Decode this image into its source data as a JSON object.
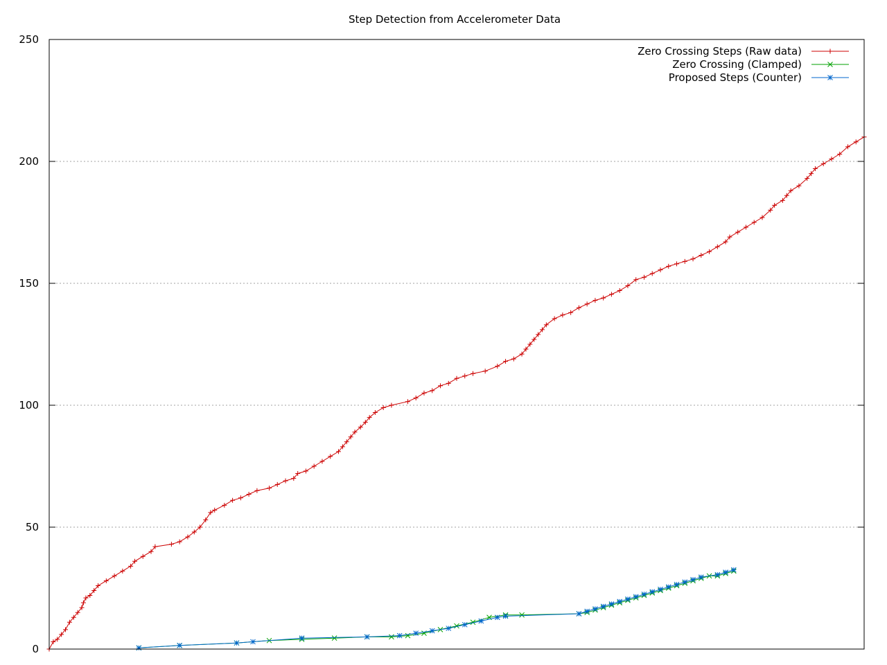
{
  "chart_data": {
    "type": "line",
    "title": "Step Detection from Accelerometer Data",
    "xlabel": "",
    "ylabel": "",
    "xlim": [
      0,
      100
    ],
    "ylim": [
      0,
      250
    ],
    "yticks": [
      0,
      50,
      100,
      150,
      200,
      250
    ],
    "yticklabels": [
      "0",
      "50",
      "100",
      "150",
      "200",
      "250"
    ],
    "grid": "horizontal-dotted",
    "legend": "top-right",
    "series": [
      {
        "name": "Zero Crossing Steps (Raw data)",
        "color": "#cc0000",
        "marker": "plus",
        "points": [
          [
            0,
            0
          ],
          [
            0.5,
            3
          ],
          [
            1,
            4
          ],
          [
            1.5,
            6
          ],
          [
            2,
            8
          ],
          [
            2.5,
            11
          ],
          [
            3,
            13
          ],
          [
            3.5,
            15
          ],
          [
            4,
            17
          ],
          [
            4.2,
            19
          ],
          [
            4.5,
            21
          ],
          [
            5,
            22
          ],
          [
            5.5,
            24
          ],
          [
            6,
            26
          ],
          [
            7,
            28
          ],
          [
            8,
            30
          ],
          [
            9,
            32
          ],
          [
            10,
            34
          ],
          [
            10.5,
            36
          ],
          [
            11.5,
            38
          ],
          [
            12.5,
            40
          ],
          [
            13,
            42
          ],
          [
            15,
            43
          ],
          [
            16,
            44
          ],
          [
            17,
            46
          ],
          [
            17.8,
            48
          ],
          [
            18.5,
            50
          ],
          [
            19.2,
            53
          ],
          [
            19.8,
            56
          ],
          [
            20.3,
            57
          ],
          [
            21.5,
            59
          ],
          [
            22.5,
            61
          ],
          [
            23.5,
            62
          ],
          [
            24.5,
            63.5
          ],
          [
            25.5,
            65
          ],
          [
            27,
            66
          ],
          [
            28,
            67.5
          ],
          [
            29,
            69
          ],
          [
            30,
            70
          ],
          [
            30.5,
            72
          ],
          [
            31.5,
            73
          ],
          [
            32.5,
            75
          ],
          [
            33.5,
            77
          ],
          [
            34.5,
            79
          ],
          [
            35.5,
            81
          ],
          [
            36,
            83
          ],
          [
            36.5,
            85
          ],
          [
            37,
            87
          ],
          [
            37.5,
            89
          ],
          [
            38.2,
            91
          ],
          [
            38.8,
            93
          ],
          [
            39.3,
            95
          ],
          [
            40,
            97
          ],
          [
            41,
            99
          ],
          [
            42,
            100
          ],
          [
            44,
            101.5
          ],
          [
            45,
            103
          ],
          [
            46,
            105
          ],
          [
            47,
            106
          ],
          [
            48,
            108
          ],
          [
            49,
            109
          ],
          [
            50,
            111
          ],
          [
            51,
            112
          ],
          [
            52,
            113
          ],
          [
            53.5,
            114
          ],
          [
            55,
            116
          ],
          [
            56,
            118
          ],
          [
            57,
            119
          ],
          [
            58,
            121
          ],
          [
            58.5,
            123
          ],
          [
            59,
            125
          ],
          [
            59.5,
            127
          ],
          [
            60,
            129
          ],
          [
            60.5,
            131
          ],
          [
            61,
            133
          ],
          [
            62,
            135.5
          ],
          [
            63,
            137
          ],
          [
            64,
            138
          ],
          [
            65,
            140
          ],
          [
            66,
            141.5
          ],
          [
            67,
            143
          ],
          [
            68,
            144
          ],
          [
            69,
            145.5
          ],
          [
            70,
            147
          ],
          [
            71,
            149
          ],
          [
            72,
            151.5
          ],
          [
            73,
            152.5
          ],
          [
            74,
            154
          ],
          [
            75,
            155.5
          ],
          [
            76,
            157
          ],
          [
            77,
            158
          ],
          [
            78,
            159
          ],
          [
            79,
            160
          ],
          [
            80,
            161.5
          ],
          [
            81,
            163
          ],
          [
            82,
            165
          ],
          [
            83,
            167
          ],
          [
            83.5,
            169
          ],
          [
            84.5,
            171
          ],
          [
            85.5,
            173
          ],
          [
            86.5,
            175
          ],
          [
            87.5,
            177
          ],
          [
            88.5,
            180
          ],
          [
            89,
            182
          ],
          [
            90,
            184
          ],
          [
            90.5,
            186
          ],
          [
            91,
            188
          ],
          [
            92,
            190
          ],
          [
            93,
            193
          ],
          [
            93.5,
            195
          ],
          [
            94,
            197
          ],
          [
            95,
            199
          ],
          [
            96,
            201
          ],
          [
            97,
            203
          ],
          [
            98,
            206
          ],
          [
            99,
            208
          ],
          [
            100,
            210
          ]
        ]
      },
      {
        "name": "Zero Crossing (Clamped)",
        "color": "#00a000",
        "marker": "cross",
        "points": [
          [
            11,
            0.5
          ],
          [
            16,
            1.5
          ],
          [
            23,
            2.5
          ],
          [
            27,
            3.5
          ],
          [
            31,
            4
          ],
          [
            35,
            4.5
          ],
          [
            39,
            5
          ],
          [
            42,
            5
          ],
          [
            44,
            5.5
          ],
          [
            46,
            6.5
          ],
          [
            48,
            8
          ],
          [
            50,
            9.5
          ],
          [
            52,
            11
          ],
          [
            54,
            13
          ],
          [
            56,
            14
          ],
          [
            58,
            14
          ],
          [
            65,
            14.5
          ],
          [
            66,
            15
          ],
          [
            67,
            16
          ],
          [
            68,
            17
          ],
          [
            69,
            18
          ],
          [
            70,
            19
          ],
          [
            71,
            20
          ],
          [
            72,
            21
          ],
          [
            73,
            22
          ],
          [
            74,
            23
          ],
          [
            75,
            24
          ],
          [
            76,
            25
          ],
          [
            77,
            26
          ],
          [
            78,
            27
          ],
          [
            79,
            28
          ],
          [
            80,
            29
          ],
          [
            81,
            30
          ],
          [
            82,
            30
          ],
          [
            83,
            31
          ],
          [
            84,
            32
          ]
        ]
      },
      {
        "name": "Proposed Steps (Counter)",
        "color": "#0066cc",
        "marker": "star",
        "points": [
          [
            11,
            0.5
          ],
          [
            16,
            1.5
          ],
          [
            23,
            2.5
          ],
          [
            25,
            3
          ],
          [
            31,
            4.5
          ],
          [
            39,
            5
          ],
          [
            43,
            5.5
          ],
          [
            45,
            6.5
          ],
          [
            47,
            7.5
          ],
          [
            49,
            8.5
          ],
          [
            51,
            10
          ],
          [
            53,
            11.5
          ],
          [
            55,
            13
          ],
          [
            56,
            13.5
          ],
          [
            65,
            14.5
          ],
          [
            66,
            15.5
          ],
          [
            67,
            16.5
          ],
          [
            68,
            17.5
          ],
          [
            69,
            18.5
          ],
          [
            70,
            19.5
          ],
          [
            71,
            20.5
          ],
          [
            72,
            21.5
          ],
          [
            73,
            22.5
          ],
          [
            74,
            23.5
          ],
          [
            75,
            24.5
          ],
          [
            76,
            25.5
          ],
          [
            77,
            26.5
          ],
          [
            78,
            27.5
          ],
          [
            79,
            28.5
          ],
          [
            80,
            29.5
          ],
          [
            82,
            30.5
          ],
          [
            83,
            31.5
          ],
          [
            84,
            32.5
          ]
        ]
      }
    ]
  }
}
